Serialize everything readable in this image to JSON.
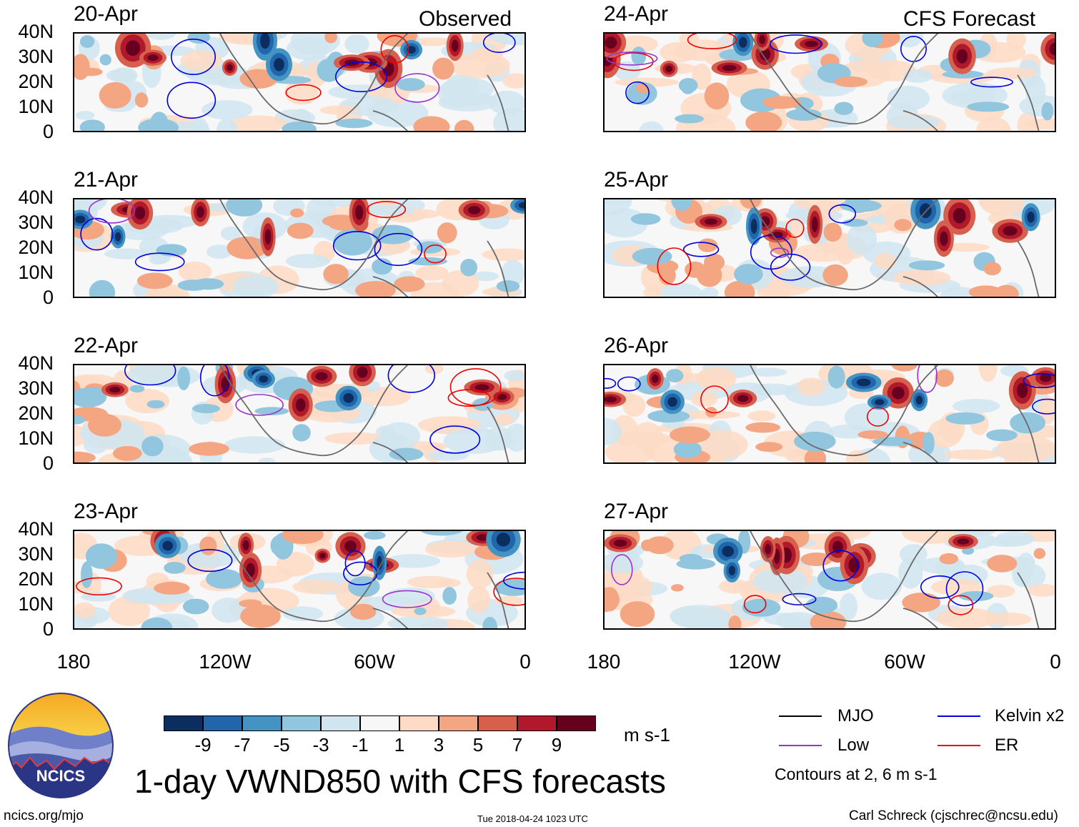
{
  "header": {
    "left_label": "Observed",
    "right_label": "CFS Forecast"
  },
  "panels": [
    {
      "date": "20-Apr",
      "column": "observed"
    },
    {
      "date": "21-Apr",
      "column": "observed"
    },
    {
      "date": "22-Apr",
      "column": "observed"
    },
    {
      "date": "23-Apr",
      "column": "observed"
    },
    {
      "date": "24-Apr",
      "column": "forecast"
    },
    {
      "date": "25-Apr",
      "column": "forecast"
    },
    {
      "date": "26-Apr",
      "column": "forecast"
    },
    {
      "date": "27-Apr",
      "column": "forecast"
    }
  ],
  "axes": {
    "latitudes": [
      "40N",
      "30N",
      "20N",
      "10N",
      "0"
    ],
    "longitudes": [
      "180",
      "120W",
      "60W",
      "0"
    ]
  },
  "colorbar": {
    "colors": [
      "#0b2e5e",
      "#2166ac",
      "#4393c3",
      "#92c5de",
      "#d1e5f0",
      "#f7f7f7",
      "#fddbc7",
      "#f4a582",
      "#d6604d",
      "#b2182b",
      "#67001f"
    ],
    "tick_labels": [
      "-9",
      "-7",
      "-5",
      "-3",
      "-1",
      "1",
      "3",
      "5",
      "7",
      "9"
    ],
    "units": "m s-1"
  },
  "legend": {
    "items": [
      {
        "label": "MJO",
        "color": "#000000"
      },
      {
        "label": "Kelvin x2",
        "color": "#0000dd"
      },
      {
        "label": "Low",
        "color": "#9a32cd"
      },
      {
        "label": "ER",
        "color": "#ee0000"
      }
    ],
    "note": "Contours at 2, 6 m s-1"
  },
  "main_title": "1-day VWND850 with CFS forecasts",
  "footer": {
    "website": "ncics.org/mjo",
    "timestamp": "Tue 2018-04-24 1023 UTC",
    "author": "Carl Schreck (cjschrec@ncsu.edu)"
  },
  "logo": {
    "text": "NCICS"
  }
}
